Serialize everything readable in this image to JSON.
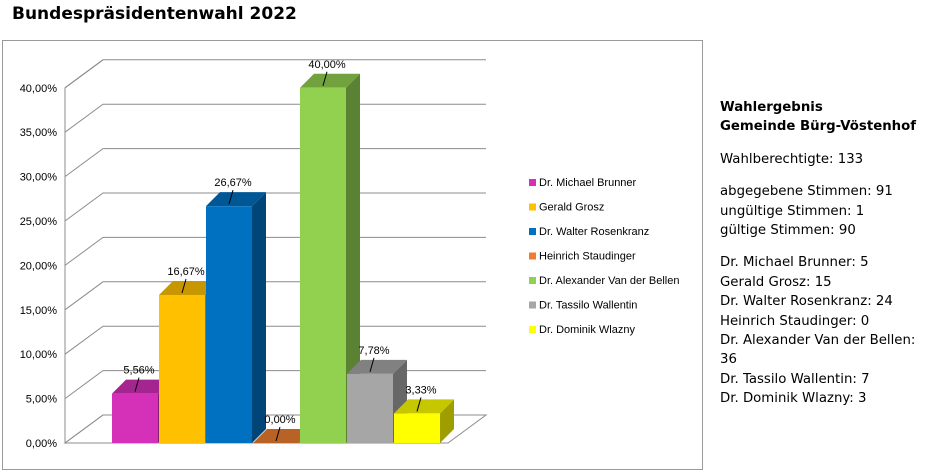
{
  "page": {
    "title": "Bundespräsidentenwahl 2022"
  },
  "chart_data": {
    "type": "bar",
    "categories": [
      "Dr. Michael Brunner",
      "Gerald Grosz",
      "Dr. Walter Rosenkranz",
      "Heinrich Staudinger",
      "Dr. Alexander Van der Bellen",
      "Dr. Tassilo Wallentin",
      "Dr. Dominik Wlazny"
    ],
    "values": [
      5.56,
      16.67,
      26.67,
      0.0,
      40.0,
      7.78,
      3.33
    ],
    "data_labels": [
      "5,56%",
      "16,67%",
      "26,67%",
      "0,00%",
      "40,00%",
      "7,78%",
      "3,33%"
    ],
    "colors": [
      "#d430b8",
      "#ffc000",
      "#0070c0",
      "#ed7d31",
      "#92d050",
      "#a6a6a6",
      "#ffff00"
    ],
    "y_ticks": [
      "0,00%",
      "5,00%",
      "10,00%",
      "15,00%",
      "20,00%",
      "25,00%",
      "30,00%",
      "35,00%",
      "40,00%"
    ],
    "ylim": [
      0,
      40
    ],
    "grid": true,
    "legend": "right",
    "style": "3d-column"
  },
  "panel": {
    "heading_lines": [
      "Wahlergebnis",
      "Gemeinde Bürg-Vöstenhof"
    ],
    "eligible": "Wahlberechtigte: 133",
    "votes": [
      "abgegebene Stimmen: 91",
      "ungültige Stimmen: 1",
      "gültige Stimmen: 90"
    ],
    "results": [
      "Dr. Michael Brunner: 5",
      "Gerald Grosz: 15",
      "Dr. Walter Rosenkranz: 24",
      "Heinrich Staudinger: 0",
      "Dr. Alexander Van der Bellen: 36",
      "Dr. Tassilo Wallentin: 7",
      "Dr. Dominik Wlazny: 3"
    ]
  }
}
